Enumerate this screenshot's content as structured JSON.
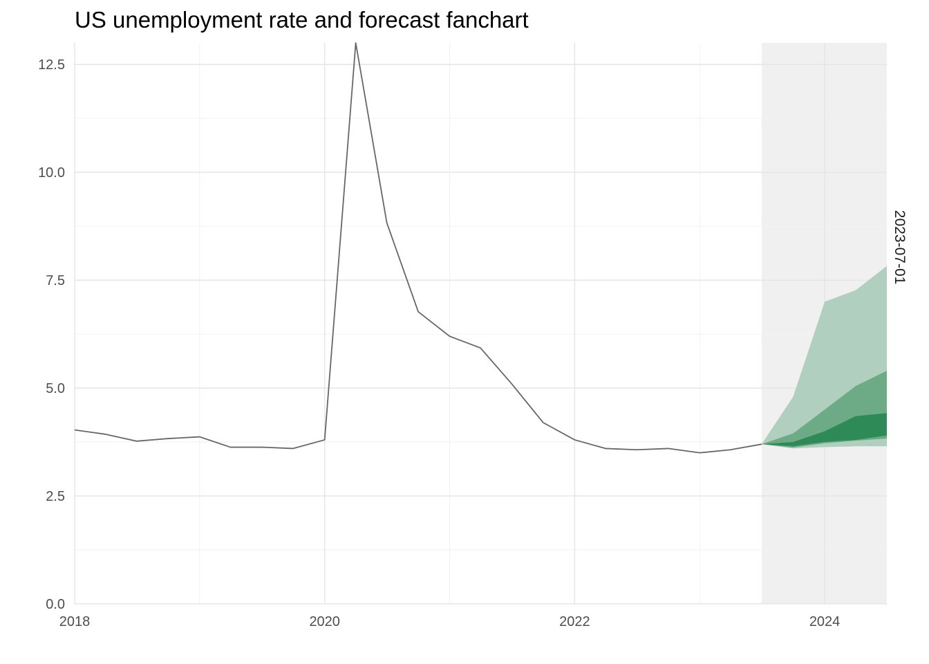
{
  "chart_data": {
    "type": "area",
    "title": "US unemployment rate and forecast fanchart",
    "xlabel": "",
    "ylabel": "",
    "xlim": [
      "2018-01-01",
      "2024-07-01"
    ],
    "ylim": [
      0,
      13
    ],
    "x_ticks": [
      "2018",
      "2020",
      "2022",
      "2024"
    ],
    "y_ticks": [
      "0.0",
      "2.5",
      "5.0",
      "7.5",
      "10.0",
      "12.5"
    ],
    "grid": true,
    "colors": {
      "line": "#666666",
      "band_outer": "#b0cfbe",
      "band_middle": "#6dab86",
      "band_inner": "#2e8b57",
      "forecast_shade": "#f0f0f0",
      "grid_major": "#e5e5e5",
      "grid_minor": "#f2f2f2"
    },
    "forecast_region": {
      "start": "2023-07-01",
      "end": "2024-07-01",
      "label": "2023-07-01"
    },
    "series": [
      {
        "type": "line",
        "x": [
          "2018-01-01",
          "2018-04-01",
          "2018-07-01",
          "2018-10-01",
          "2019-01-01",
          "2019-04-01",
          "2019-07-01",
          "2019-10-01",
          "2020-01-01",
          "2020-04-01",
          "2020-07-01",
          "2020-10-01",
          "2021-01-01",
          "2021-04-01",
          "2021-07-01",
          "2021-10-01",
          "2022-01-01",
          "2022-04-01",
          "2022-07-01",
          "2022-10-01",
          "2023-01-01",
          "2023-04-01",
          "2023-07-01"
        ],
        "values": [
          4.03,
          3.93,
          3.77,
          3.83,
          3.87,
          3.63,
          3.63,
          3.6,
          3.8,
          13.0,
          8.83,
          6.77,
          6.2,
          5.93,
          5.1,
          4.2,
          3.8,
          3.6,
          3.57,
          3.6,
          3.5,
          3.57,
          3.7
        ]
      },
      {
        "type": "band",
        "x": [
          "2023-07-01",
          "2023-10-01",
          "2024-01-01",
          "2024-04-01",
          "2024-07-01"
        ],
        "lower": [
          3.7,
          3.6,
          3.63,
          3.65,
          3.65
        ],
        "upper": [
          3.7,
          4.8,
          7.0,
          7.27,
          7.83
        ]
      },
      {
        "type": "band",
        "x": [
          "2023-07-01",
          "2023-10-01",
          "2024-01-01",
          "2024-04-01",
          "2024-07-01"
        ],
        "lower": [
          3.7,
          3.62,
          3.72,
          3.78,
          3.83
        ],
        "upper": [
          3.7,
          3.95,
          4.5,
          5.05,
          5.4
        ]
      },
      {
        "type": "band",
        "x": [
          "2023-07-01",
          "2023-10-01",
          "2024-01-01",
          "2024-04-01",
          "2024-07-01"
        ],
        "lower": [
          3.7,
          3.65,
          3.75,
          3.8,
          3.9
        ],
        "upper": [
          3.7,
          3.75,
          4.0,
          4.35,
          4.42
        ]
      }
    ]
  }
}
